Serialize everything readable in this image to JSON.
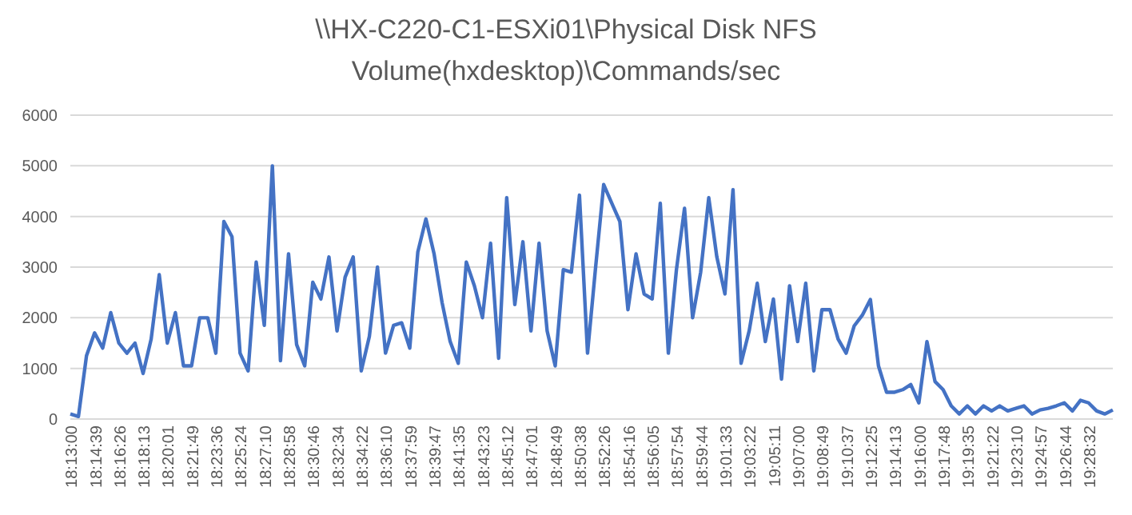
{
  "chart_data": {
    "type": "line",
    "title": "\\\\HX-C220-C1-ESXi01\\Physical Disk NFS Volume(hxdesktop)\\Commands/sec",
    "categories": [
      "18:13:00",
      null,
      null,
      "18:14:39",
      null,
      null,
      "18:16:26",
      null,
      null,
      "18:18:13",
      null,
      null,
      "18:20:01",
      null,
      null,
      "18:21:49",
      null,
      null,
      "18:23:36",
      null,
      null,
      "18:25:24",
      null,
      null,
      "18:27:10",
      null,
      null,
      "18:28:58",
      null,
      null,
      "18:30:46",
      null,
      null,
      "18:32:34",
      null,
      null,
      "18:34:22",
      null,
      null,
      "18:36:10",
      null,
      null,
      "18:37:59",
      null,
      null,
      "18:39:47",
      null,
      null,
      "18:41:35",
      null,
      null,
      "18:43:23",
      null,
      null,
      "18:45:12",
      null,
      null,
      "18:47:01",
      null,
      null,
      "18:48:49",
      null,
      null,
      "18:50:38",
      null,
      null,
      "18:52:26",
      null,
      null,
      "18:54:16",
      null,
      null,
      "18:56:05",
      null,
      null,
      "18:57:54",
      null,
      null,
      "18:59:44",
      null,
      null,
      "19:01:33",
      null,
      null,
      "19:03:22",
      null,
      null,
      "19:05:11",
      null,
      null,
      "19:07:00",
      null,
      null,
      "19:08:49",
      null,
      null,
      "19:10:37",
      null,
      null,
      "19:12:25",
      null,
      null,
      "19:14:13",
      null,
      null,
      "19:16:00",
      null,
      null,
      "19:17:48",
      null,
      null,
      "19:19:35",
      null,
      null,
      "19:21:22",
      null,
      null,
      "19:23:10",
      null,
      null,
      "19:24:57",
      null,
      null,
      "19:26:44",
      null,
      null,
      "19:28:32",
      null,
      null,
      null
    ],
    "values": [
      100,
      50,
      1250,
      1700,
      1400,
      2100,
      1500,
      1300,
      1500,
      900,
      1580,
      2850,
      1500,
      2100,
      1050,
      1050,
      2000,
      2000,
      1300,
      3900,
      3600,
      1300,
      950,
      3100,
      1850,
      5000,
      1150,
      3260,
      1470,
      1050,
      2700,
      2370,
      3200,
      1740,
      2800,
      3200,
      950,
      1630,
      3000,
      1300,
      1850,
      1900,
      1400,
      3300,
      3950,
      3270,
      2300,
      1530,
      1100,
      3100,
      2630,
      2000,
      3470,
      1200,
      4370,
      2260,
      3500,
      1740,
      3470,
      1740,
      1050,
      2950,
      2900,
      4420,
      1300,
      3000,
      4630,
      4260,
      3900,
      2160,
      3260,
      2470,
      2370,
      4260,
      1300,
      2950,
      4160,
      2000,
      2900,
      4370,
      3200,
      2470,
      4530,
      1100,
      1740,
      2680,
      1530,
      2370,
      790,
      2630,
      1530,
      2680,
      950,
      2160,
      2160,
      1580,
      1300,
      1840,
      2050,
      2360,
      1050,
      530,
      530,
      580,
      680,
      320,
      1530,
      740,
      580,
      260,
      100,
      260,
      100,
      260,
      160,
      260,
      160,
      210,
      260,
      100,
      180,
      210,
      260,
      320,
      160,
      370,
      320,
      160,
      100,
      180
    ],
    "color": "#4472c4",
    "ylim": [
      0,
      6000
    ],
    "yticks": [
      0,
      1000,
      2000,
      3000,
      4000,
      5000,
      6000
    ],
    "grid": "y",
    "marker": "none",
    "line_style": "solid"
  }
}
